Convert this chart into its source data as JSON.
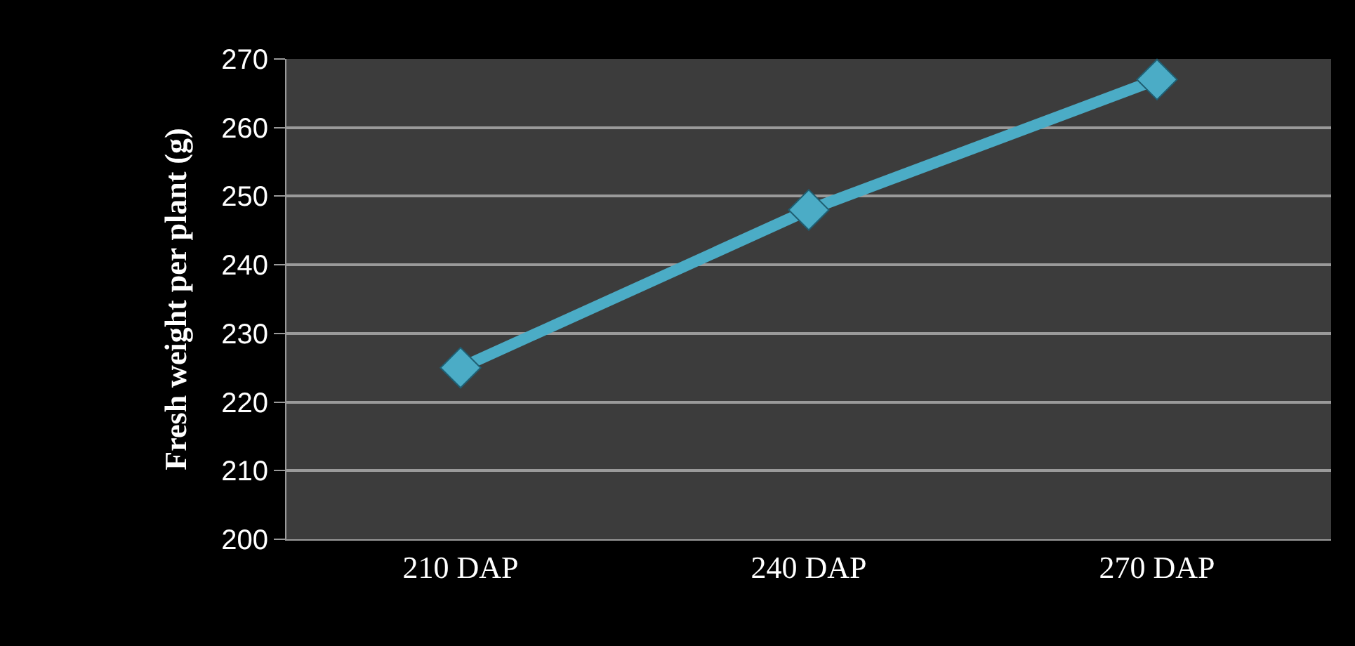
{
  "chart_data": {
    "type": "line",
    "ylabel": "Fresh weight per plant (g)",
    "categories": [
      "210 DAP",
      "240 DAP",
      "270 DAP"
    ],
    "series": [
      {
        "color": "#4bacc6",
        "values": [
          225,
          248,
          267
        ]
      }
    ],
    "ylim": [
      200,
      270
    ],
    "yticks": [
      200,
      210,
      220,
      230,
      240,
      250,
      260,
      270
    ],
    "grid": "y",
    "marker": "diamond",
    "line_style": "solid"
  }
}
